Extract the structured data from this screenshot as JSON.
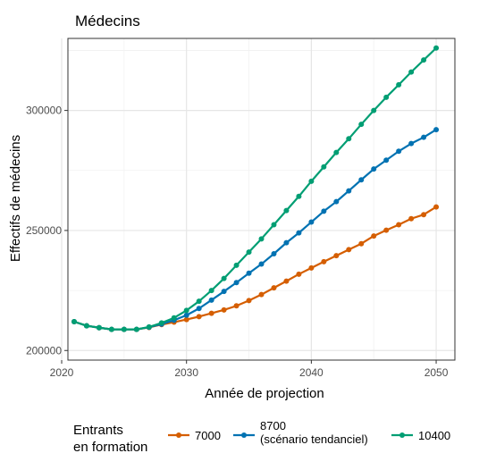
{
  "chart_data": {
    "type": "line",
    "title": "Médecins",
    "xlabel": "Année de projection",
    "ylabel": "Effectifs de médecins",
    "xlim": [
      2020.5,
      2051.5
    ],
    "ylim": [
      196000,
      330000
    ],
    "x_ticks": [
      2020,
      2030,
      2040,
      2050
    ],
    "x_tick_labels": [
      "2020",
      "2030",
      "2040",
      "2050"
    ],
    "y_ticks": [
      200000,
      250000,
      300000
    ],
    "y_tick_labels": [
      "200000",
      "250000",
      "300000"
    ],
    "grid": true,
    "legend": {
      "position": "bottom",
      "title_lines": [
        "Entrants",
        "en formation"
      ],
      "entries": [
        {
          "lines": [
            "7000"
          ],
          "color": "#D55E00"
        },
        {
          "lines": [
            "8700",
            "(scénario tendanciel)"
          ],
          "color": "#0072B2"
        },
        {
          "lines": [
            "10400"
          ],
          "color": "#009E73"
        }
      ]
    },
    "x": [
      2021,
      2022,
      2023,
      2024,
      2025,
      2026,
      2027,
      2028,
      2029,
      2030,
      2031,
      2032,
      2033,
      2034,
      2035,
      2036,
      2037,
      2038,
      2039,
      2040,
      2041,
      2042,
      2043,
      2044,
      2045,
      2046,
      2047,
      2048,
      2049,
      2050
    ],
    "series": [
      {
        "name": "7000",
        "color": "#D55E00",
        "values": [
          212000,
          210300,
          209500,
          208800,
          208800,
          208800,
          209600,
          210800,
          211800,
          212900,
          214100,
          215500,
          216900,
          218600,
          220800,
          223300,
          226100,
          228900,
          231800,
          234400,
          237000,
          239500,
          242000,
          244500,
          247700,
          250100,
          252400,
          254900,
          256600,
          259800
        ]
      },
      {
        "name": "8700",
        "color": "#0072B2",
        "values": [
          212000,
          210300,
          209500,
          208800,
          208800,
          208800,
          209700,
          211000,
          212600,
          214700,
          217500,
          221000,
          224600,
          228300,
          232200,
          236000,
          240300,
          244900,
          249000,
          253500,
          258000,
          262000,
          266500,
          271100,
          275600,
          279300,
          283000,
          286200,
          288800,
          292000
        ]
      },
      {
        "name": "10400",
        "color": "#009E73",
        "values": [
          212000,
          210300,
          209500,
          208800,
          208800,
          208800,
          209800,
          211500,
          213600,
          216700,
          220500,
          225000,
          230000,
          235500,
          241000,
          246500,
          252400,
          258300,
          264200,
          270500,
          276500,
          282500,
          288200,
          294200,
          300000,
          305500,
          310700,
          316000,
          321000,
          326000
        ]
      }
    ]
  }
}
